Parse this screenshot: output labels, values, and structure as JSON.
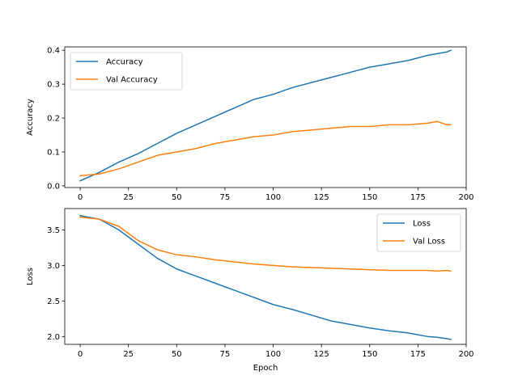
{
  "chart_data": [
    {
      "type": "line",
      "title": "",
      "xlabel": "",
      "ylabel": "Accuracy",
      "xlim": [
        -8,
        200
      ],
      "ylim": [
        -0.005,
        0.41
      ],
      "xticks": [
        0,
        25,
        50,
        75,
        100,
        125,
        150,
        175,
        200
      ],
      "yticks": [
        0.0,
        0.1,
        0.2,
        0.3,
        0.4
      ],
      "ytick_labels": [
        "0.0",
        "0.1",
        "0.2",
        "0.3",
        "0.4"
      ],
      "legend": "top-left",
      "grid": false,
      "x": [
        0,
        10,
        20,
        30,
        40,
        50,
        60,
        70,
        80,
        90,
        100,
        110,
        120,
        130,
        140,
        150,
        160,
        170,
        180,
        185,
        190,
        192
      ],
      "series": [
        {
          "name": "Accuracy",
          "color": "#1f77b4",
          "values": [
            0.015,
            0.04,
            0.07,
            0.095,
            0.125,
            0.155,
            0.18,
            0.205,
            0.23,
            0.255,
            0.27,
            0.29,
            0.305,
            0.32,
            0.335,
            0.35,
            0.36,
            0.37,
            0.385,
            0.39,
            0.395,
            0.4
          ]
        },
        {
          "name": "Val Accuracy",
          "color": "#ff7f0e",
          "values": [
            0.03,
            0.035,
            0.05,
            0.07,
            0.09,
            0.1,
            0.11,
            0.125,
            0.135,
            0.145,
            0.15,
            0.16,
            0.165,
            0.17,
            0.175,
            0.175,
            0.18,
            0.18,
            0.185,
            0.19,
            0.18,
            0.18
          ]
        }
      ]
    },
    {
      "type": "line",
      "title": "",
      "xlabel": "Epoch",
      "ylabel": "Loss",
      "xlim": [
        -8,
        200
      ],
      "ylim": [
        1.89,
        3.8
      ],
      "xticks": [
        0,
        25,
        50,
        75,
        100,
        125,
        150,
        175,
        200
      ],
      "yticks": [
        2.0,
        2.5,
        3.0,
        3.5
      ],
      "ytick_labels": [
        "2.0",
        "2.5",
        "3.0",
        "3.5"
      ],
      "legend": "top-right",
      "grid": false,
      "x": [
        0,
        10,
        20,
        30,
        40,
        50,
        60,
        70,
        80,
        90,
        100,
        110,
        120,
        130,
        140,
        150,
        160,
        170,
        180,
        185,
        190,
        192
      ],
      "series": [
        {
          "name": "Loss",
          "color": "#1f77b4",
          "values": [
            3.7,
            3.65,
            3.5,
            3.3,
            3.1,
            2.95,
            2.85,
            2.75,
            2.65,
            2.55,
            2.45,
            2.38,
            2.3,
            2.22,
            2.17,
            2.12,
            2.08,
            2.05,
            2.0,
            1.99,
            1.97,
            1.96
          ]
        },
        {
          "name": "Val Loss",
          "color": "#ff7f0e",
          "values": [
            3.68,
            3.65,
            3.55,
            3.35,
            3.22,
            3.15,
            3.12,
            3.08,
            3.05,
            3.02,
            3.0,
            2.98,
            2.97,
            2.96,
            2.95,
            2.94,
            2.93,
            2.93,
            2.93,
            2.92,
            2.93,
            2.92
          ]
        }
      ]
    }
  ]
}
